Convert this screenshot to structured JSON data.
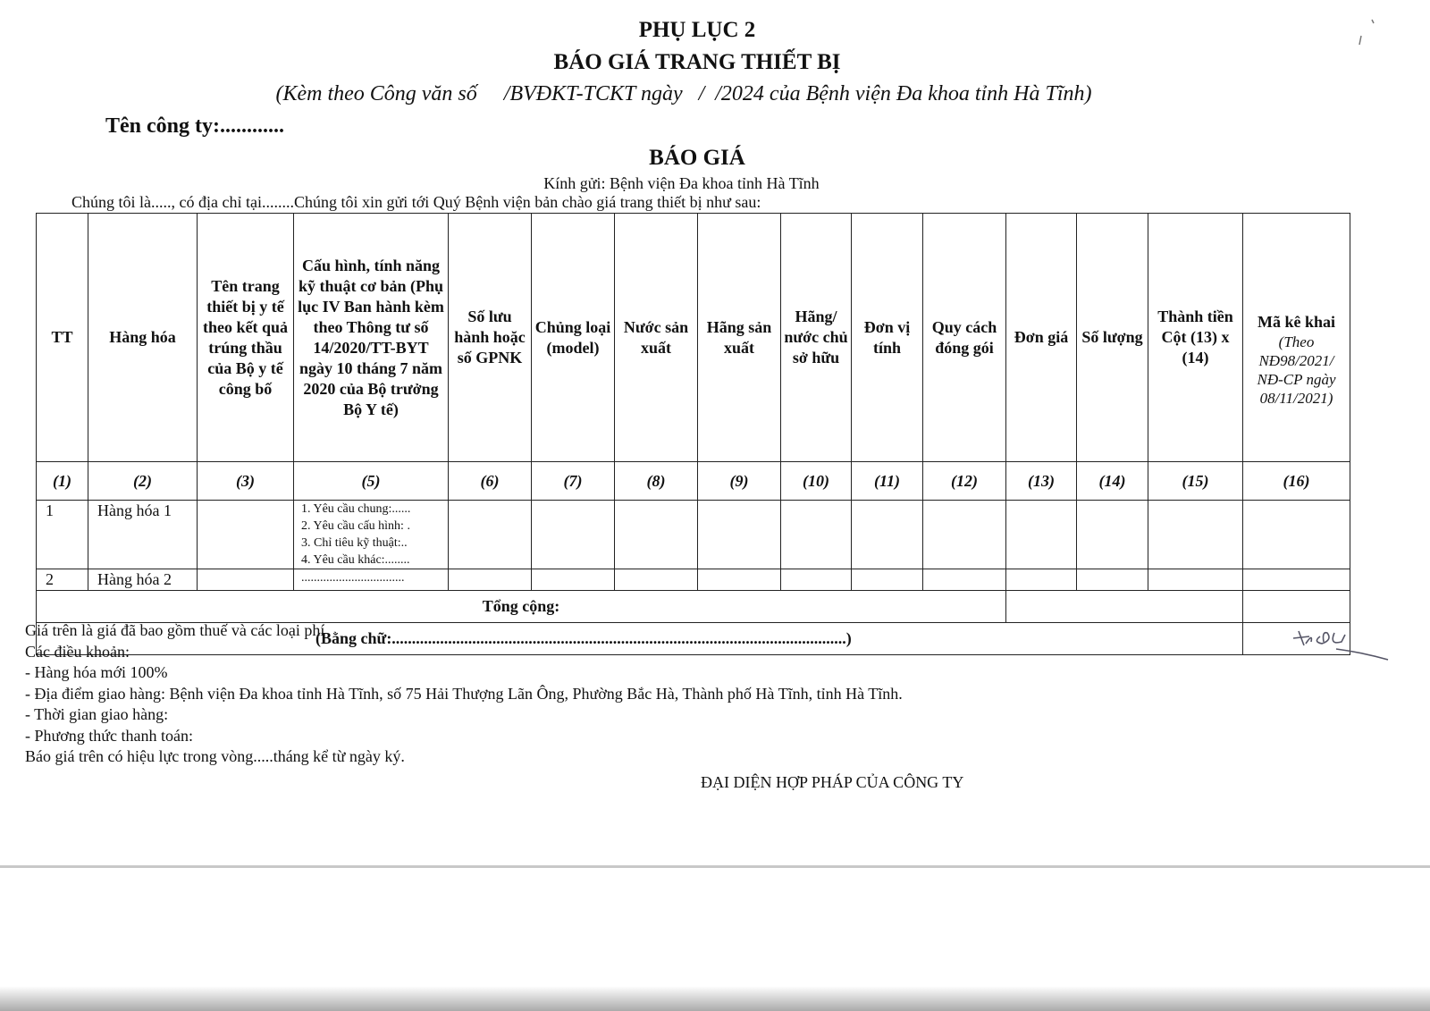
{
  "header": {
    "appendix": "PHỤ LỤC 2",
    "title": "BÁO GIÁ TRANG THIẾT BỊ",
    "subtitle": "(Kèm theo Công văn số     /BVĐKT-TCKT ngày   /  /2024 của Bệnh viện Đa khoa tỉnh Hà Tĩnh)",
    "company": "Tên công ty:............",
    "quote_title": "BÁO GIÁ",
    "recipient": "Kính gửi: Bệnh viện Đa khoa tỉnh Hà Tĩnh",
    "intro": "Chúng tôi là....., có địa chỉ tại........Chúng tôi xin gửi tới Quý Bệnh viện bản chào giá trang thiết bị như sau:"
  },
  "table": {
    "columns": [
      {
        "label": "TT",
        "num": "(1)"
      },
      {
        "label": "Hàng hóa",
        "num": "(2)"
      },
      {
        "label": "Tên trang thiết bị y tế theo kết quả trúng thầu của Bộ y tế công bố",
        "num": "(3)"
      },
      {
        "label": "Cấu hình, tính năng kỹ thuật cơ bản (Phụ lục IV Ban hành kèm theo Thông tư số 14/2020/TT-BYT ngày 10 tháng 7 năm 2020 của Bộ trưởng Bộ Y tế)",
        "num": "(5)"
      },
      {
        "label": "Số lưu hành hoặc số GPNK",
        "num": "(6)"
      },
      {
        "label": "Chủng loại (model)",
        "num": "(7)"
      },
      {
        "label": "Nước sản xuất",
        "num": "(8)"
      },
      {
        "label": "Hãng sản xuất",
        "num": "(9)"
      },
      {
        "label": "Hãng/ nước chủ sở hữu",
        "num": "(10)"
      },
      {
        "label": "Đơn vị tính",
        "num": "(11)"
      },
      {
        "label": "Quy cách đóng gói",
        "num": "(12)"
      },
      {
        "label": "Đơn giá",
        "num": "(13)"
      },
      {
        "label": "Số lượng",
        "num": "(14)"
      },
      {
        "label": "Thành tiền Cột (13) x (14)",
        "num": "(15)"
      },
      {
        "label": "Mã kê khai",
        "sub": "(Theo NĐ98/2021/ NĐ-CP ngày 08/11/2021)",
        "num": "(16)"
      }
    ],
    "rows": [
      {
        "tt": "1",
        "item": "Hàng hóa 1",
        "spec": [
          "1. Yêu cầu chung:......",
          "2. Yêu cầu cấu hình: .",
          "3. Chỉ tiêu kỹ thuật:..",
          "4. Yêu cầu khác:........"
        ]
      },
      {
        "tt": "2",
        "item": "Hàng hóa 2",
        "spec": [
          "................................."
        ]
      }
    ],
    "total_label": "Tổng cộng:",
    "words_label": "(Bằng chữ:.................................................................................................................)"
  },
  "notes": [
    "Giá trên là giá đã bao gồm thuế và các loại phí",
    "Các điều khoản:",
    "- Hàng hóa mới 100%",
    "- Địa điểm giao hàng: Bệnh viện Đa khoa tỉnh Hà Tĩnh, số 75 Hải Thượng Lãn Ông, Phường Bắc Hà, Thành phố Hà Tĩnh, tỉnh Hà Tĩnh.",
    "- Thời gian giao hàng:",
    "- Phương thức thanh toán:",
    "Báo giá trên có hiệu lực trong vòng.....tháng kể từ ngày ký."
  ],
  "representative": "ĐẠI DIỆN HỢP PHÁP CỦA CÔNG TY"
}
